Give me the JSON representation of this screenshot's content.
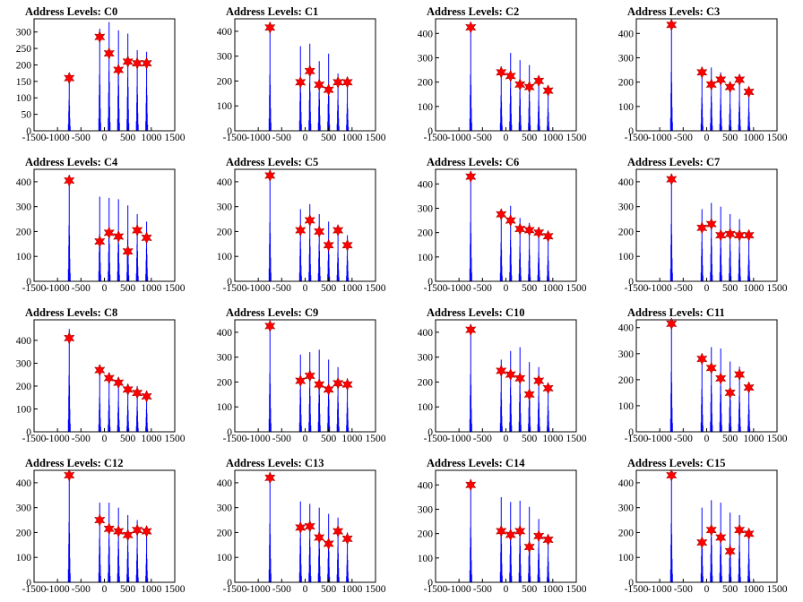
{
  "colors": {
    "histogram": "#0000ff",
    "marker": "#ff0000",
    "outline": "#8b0000",
    "axis": "#000000"
  },
  "chart_data": [
    {
      "type": "bar",
      "title": "Address Levels: C0",
      "xlim": [
        -1500,
        1500
      ],
      "ylim": [
        0,
        340
      ],
      "xticks": [
        -1500,
        -1000,
        -500,
        0,
        500,
        1000,
        1500
      ],
      "yticks": [
        0,
        50,
        100,
        150,
        200,
        250,
        300
      ],
      "peaks": [
        -750,
        -100,
        100,
        300,
        500,
        700,
        900
      ],
      "hist_max": [
        170,
        310,
        330,
        305,
        295,
        245,
        240
      ],
      "markers": [
        [
          -750,
          160
        ],
        [
          -100,
          285
        ],
        [
          100,
          235
        ],
        [
          300,
          185
        ],
        [
          500,
          210
        ],
        [
          700,
          205
        ],
        [
          900,
          205
        ]
      ]
    },
    {
      "type": "bar",
      "title": "Address Levels: C1",
      "xlim": [
        -1500,
        1500
      ],
      "ylim": [
        0,
        450
      ],
      "xticks": [
        -1500,
        -1000,
        -500,
        0,
        500,
        1000,
        1500
      ],
      "yticks": [
        0,
        100,
        200,
        300,
        400
      ],
      "peaks": [
        -750,
        -100,
        100,
        300,
        500,
        700,
        900
      ],
      "hist_max": [
        410,
        340,
        350,
        280,
        310,
        230,
        200
      ],
      "markers": [
        [
          -750,
          415
        ],
        [
          -100,
          195
        ],
        [
          100,
          240
        ],
        [
          300,
          185
        ],
        [
          500,
          165
        ],
        [
          700,
          195
        ],
        [
          900,
          195
        ]
      ]
    },
    {
      "type": "bar",
      "title": "Address Levels: C2",
      "xlim": [
        -1500,
        1500
      ],
      "ylim": [
        0,
        460
      ],
      "xticks": [
        -1500,
        -1000,
        -500,
        0,
        500,
        1000,
        1500
      ],
      "yticks": [
        0,
        100,
        200,
        300,
        400
      ],
      "peaks": [
        -750,
        -100,
        100,
        300,
        500,
        700,
        900
      ],
      "hist_max": [
        420,
        265,
        320,
        290,
        270,
        225,
        170
      ],
      "markers": [
        [
          -750,
          425
        ],
        [
          -100,
          240
        ],
        [
          100,
          225
        ],
        [
          300,
          190
        ],
        [
          500,
          180
        ],
        [
          700,
          205
        ],
        [
          900,
          165
        ]
      ]
    },
    {
      "type": "bar",
      "title": "Address Levels: C3",
      "xlim": [
        -1500,
        1500
      ],
      "ylim": [
        0,
        460
      ],
      "xticks": [
        -1500,
        -1000,
        -500,
        0,
        500,
        1000,
        1500
      ],
      "yticks": [
        0,
        100,
        200,
        300,
        400
      ],
      "peaks": [
        -750,
        -100,
        100,
        300,
        500,
        700,
        900
      ],
      "hist_max": [
        440,
        250,
        260,
        240,
        200,
        220,
        170
      ],
      "markers": [
        [
          -750,
          435
        ],
        [
          -100,
          240
        ],
        [
          100,
          190
        ],
        [
          300,
          210
        ],
        [
          500,
          180
        ],
        [
          700,
          210
        ],
        [
          900,
          160
        ]
      ]
    },
    {
      "type": "bar",
      "title": "Address Levels: C4",
      "xlim": [
        -1500,
        1500
      ],
      "ylim": [
        0,
        450
      ],
      "xticks": [
        -1500,
        -1000,
        -500,
        0,
        500,
        1000,
        1500
      ],
      "yticks": [
        0,
        100,
        200,
        300,
        400
      ],
      "peaks": [
        -750,
        -100,
        100,
        300,
        500,
        700,
        900
      ],
      "hist_max": [
        410,
        340,
        335,
        330,
        305,
        270,
        240
      ],
      "markers": [
        [
          -750,
          405
        ],
        [
          -100,
          160
        ],
        [
          100,
          195
        ],
        [
          300,
          180
        ],
        [
          500,
          120
        ],
        [
          700,
          205
        ],
        [
          900,
          175
        ]
      ]
    },
    {
      "type": "bar",
      "title": "Address Levels: C5",
      "xlim": [
        -1500,
        1500
      ],
      "ylim": [
        0,
        450
      ],
      "xticks": [
        -1500,
        -1000,
        -500,
        0,
        500,
        1000,
        1500
      ],
      "yticks": [
        0,
        100,
        200,
        300,
        400
      ],
      "peaks": [
        -750,
        -100,
        100,
        300,
        500,
        700,
        900
      ],
      "hist_max": [
        430,
        290,
        310,
        270,
        240,
        210,
        185
      ],
      "markers": [
        [
          -750,
          425
        ],
        [
          -100,
          205
        ],
        [
          100,
          245
        ],
        [
          300,
          200
        ],
        [
          500,
          145
        ],
        [
          700,
          205
        ],
        [
          900,
          145
        ]
      ]
    },
    {
      "type": "bar",
      "title": "Address Levels: C6",
      "xlim": [
        -1500,
        1500
      ],
      "ylim": [
        0,
        460
      ],
      "xticks": [
        -1500,
        -1000,
        -500,
        0,
        500,
        1000,
        1500
      ],
      "yticks": [
        0,
        100,
        200,
        300,
        400
      ],
      "peaks": [
        -750,
        -100,
        100,
        300,
        500,
        700,
        900
      ],
      "hist_max": [
        440,
        290,
        310,
        260,
        240,
        215,
        190
      ],
      "markers": [
        [
          -750,
          430
        ],
        [
          -100,
          275
        ],
        [
          100,
          250
        ],
        [
          300,
          215
        ],
        [
          500,
          210
        ],
        [
          700,
          200
        ],
        [
          900,
          185
        ]
      ]
    },
    {
      "type": "bar",
      "title": "Address Levels: C7",
      "xlim": [
        -1500,
        1500
      ],
      "ylim": [
        0,
        450
      ],
      "xticks": [
        -1500,
        -1000,
        -500,
        0,
        500,
        1000,
        1500
      ],
      "yticks": [
        0,
        100,
        200,
        300,
        400
      ],
      "peaks": [
        -750,
        -100,
        100,
        300,
        500,
        700,
        900
      ],
      "hist_max": [
        420,
        290,
        315,
        300,
        270,
        250,
        190
      ],
      "markers": [
        [
          -750,
          410
        ],
        [
          -100,
          215
        ],
        [
          100,
          230
        ],
        [
          300,
          185
        ],
        [
          500,
          190
        ],
        [
          700,
          185
        ],
        [
          900,
          185
        ]
      ]
    },
    {
      "type": "bar",
      "title": "Address Levels: C8",
      "xlim": [
        -1500,
        1500
      ],
      "ylim": [
        0,
        490
      ],
      "xticks": [
        -1500,
        -1000,
        -500,
        0,
        500,
        1000,
        1500
      ],
      "yticks": [
        0,
        100,
        200,
        300,
        400
      ],
      "peaks": [
        -750,
        -100,
        100,
        300,
        500,
        700,
        900
      ],
      "hist_max": [
        450,
        275,
        260,
        240,
        210,
        200,
        180
      ],
      "markers": [
        [
          -750,
          410
        ],
        [
          -100,
          270
        ],
        [
          100,
          235
        ],
        [
          300,
          215
        ],
        [
          500,
          185
        ],
        [
          700,
          170
        ],
        [
          900,
          155
        ]
      ]
    },
    {
      "type": "bar",
      "title": "Address Levels: C9",
      "xlim": [
        -1500,
        1500
      ],
      "ylim": [
        0,
        450
      ],
      "xticks": [
        -1500,
        -1000,
        -500,
        0,
        500,
        1000,
        1500
      ],
      "yticks": [
        0,
        100,
        200,
        300,
        400
      ],
      "peaks": [
        -750,
        -100,
        100,
        300,
        500,
        700,
        900
      ],
      "hist_max": [
        430,
        310,
        320,
        330,
        290,
        260,
        215
      ],
      "markers": [
        [
          -750,
          425
        ],
        [
          -100,
          205
        ],
        [
          100,
          225
        ],
        [
          300,
          190
        ],
        [
          500,
          170
        ],
        [
          700,
          195
        ],
        [
          900,
          190
        ]
      ]
    },
    {
      "type": "bar",
      "title": "Address Levels: C10",
      "xlim": [
        -1500,
        1500
      ],
      "ylim": [
        0,
        450
      ],
      "xticks": [
        -1500,
        -1000,
        -500,
        0,
        500,
        1000,
        1500
      ],
      "yticks": [
        0,
        100,
        200,
        300,
        400
      ],
      "peaks": [
        -750,
        -100,
        100,
        300,
        500,
        700,
        900
      ],
      "hist_max": [
        420,
        290,
        325,
        340,
        280,
        260,
        190
      ],
      "markers": [
        [
          -750,
          410
        ],
        [
          -100,
          245
        ],
        [
          100,
          230
        ],
        [
          300,
          215
        ],
        [
          500,
          150
        ],
        [
          700,
          205
        ],
        [
          900,
          175
        ]
      ]
    },
    {
      "type": "bar",
      "title": "Address Levels: C11",
      "xlim": [
        -1500,
        1500
      ],
      "ylim": [
        0,
        430
      ],
      "xticks": [
        -1500,
        -1000,
        -500,
        0,
        500,
        1000,
        1500
      ],
      "yticks": [
        0,
        100,
        200,
        300,
        400
      ],
      "peaks": [
        -750,
        -100,
        100,
        300,
        500,
        700,
        900
      ],
      "hist_max": [
        420,
        300,
        325,
        320,
        270,
        250,
        190
      ],
      "markers": [
        [
          -750,
          415
        ],
        [
          -100,
          280
        ],
        [
          100,
          245
        ],
        [
          300,
          205
        ],
        [
          500,
          150
        ],
        [
          700,
          220
        ],
        [
          900,
          170
        ]
      ]
    },
    {
      "type": "bar",
      "title": "Address Levels: C12",
      "xlim": [
        -1500,
        1500
      ],
      "ylim": [
        0,
        450
      ],
      "xticks": [
        -1500,
        -1000,
        -500,
        0,
        500,
        1000,
        1500
      ],
      "yticks": [
        0,
        100,
        200,
        300,
        400
      ],
      "peaks": [
        -750,
        -100,
        100,
        300,
        500,
        700,
        900
      ],
      "hist_max": [
        440,
        320,
        320,
        300,
        270,
        250,
        210
      ],
      "markers": [
        [
          -750,
          430
        ],
        [
          -100,
          250
        ],
        [
          100,
          215
        ],
        [
          300,
          205
        ],
        [
          500,
          190
        ],
        [
          700,
          210
        ],
        [
          900,
          205
        ]
      ]
    },
    {
      "type": "bar",
      "title": "Address Levels: C13",
      "xlim": [
        -1500,
        1500
      ],
      "ylim": [
        0,
        450
      ],
      "xticks": [
        -1500,
        -1000,
        -500,
        0,
        500,
        1000,
        1500
      ],
      "yticks": [
        0,
        100,
        200,
        300,
        400
      ],
      "peaks": [
        -750,
        -100,
        100,
        300,
        500,
        700,
        900
      ],
      "hist_max": [
        430,
        325,
        315,
        300,
        275,
        260,
        200
      ],
      "markers": [
        [
          -750,
          420
        ],
        [
          -100,
          220
        ],
        [
          100,
          225
        ],
        [
          300,
          180
        ],
        [
          500,
          155
        ],
        [
          700,
          205
        ],
        [
          900,
          175
        ]
      ]
    },
    {
      "type": "bar",
      "title": "Address Levels: C14",
      "xlim": [
        -1500,
        1500
      ],
      "ylim": [
        0,
        460
      ],
      "xticks": [
        -1500,
        -1000,
        -500,
        0,
        500,
        1000,
        1500
      ],
      "yticks": [
        0,
        100,
        200,
        300,
        400
      ],
      "peaks": [
        -750,
        -100,
        100,
        300,
        500,
        700,
        900
      ],
      "hist_max": [
        410,
        350,
        330,
        335,
        310,
        260,
        190
      ],
      "markers": [
        [
          -750,
          400
        ],
        [
          -100,
          210
        ],
        [
          100,
          195
        ],
        [
          300,
          210
        ],
        [
          500,
          145
        ],
        [
          700,
          190
        ],
        [
          900,
          175
        ]
      ]
    },
    {
      "type": "bar",
      "title": "Address Levels: C15",
      "xlim": [
        -1500,
        1500
      ],
      "ylim": [
        0,
        450
      ],
      "xticks": [
        -1500,
        -1000,
        -500,
        0,
        500,
        1000,
        1500
      ],
      "yticks": [
        0,
        100,
        200,
        300,
        400
      ],
      "peaks": [
        -750,
        -100,
        100,
        300,
        500,
        700,
        900
      ],
      "hist_max": [
        430,
        300,
        330,
        320,
        280,
        270,
        210
      ],
      "markers": [
        [
          -750,
          430
        ],
        [
          -100,
          160
        ],
        [
          100,
          210
        ],
        [
          300,
          180
        ],
        [
          500,
          125
        ],
        [
          700,
          210
        ],
        [
          900,
          195
        ]
      ]
    }
  ]
}
